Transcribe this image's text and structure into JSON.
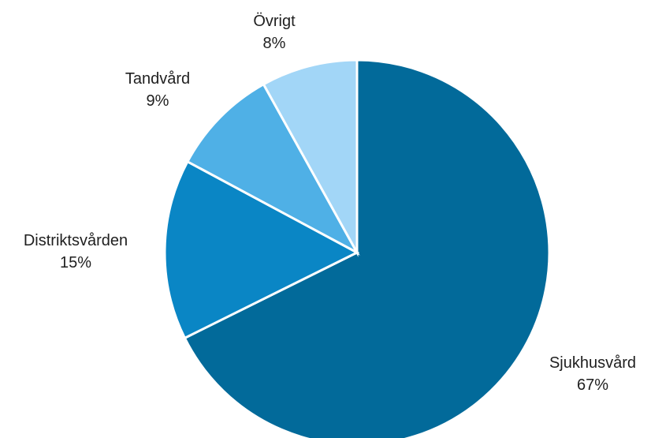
{
  "chart_data": {
    "type": "pie",
    "title": "",
    "slices": [
      {
        "label": "Sjukhusvård",
        "value": 67,
        "value_text": "67%",
        "color": "#026a9a"
      },
      {
        "label": "Distriktsvården",
        "value": 15,
        "value_text": "15%",
        "color": "#0a86c5"
      },
      {
        "label": "Tandvård",
        "value": 9,
        "value_text": "9%",
        "color": "#4fb0e6"
      },
      {
        "label": "Övrigt",
        "value": 8,
        "value_text": "8%",
        "color": "#a2d6f7"
      }
    ],
    "start_angle": "top",
    "direction": "clockwise",
    "legend": "none"
  }
}
